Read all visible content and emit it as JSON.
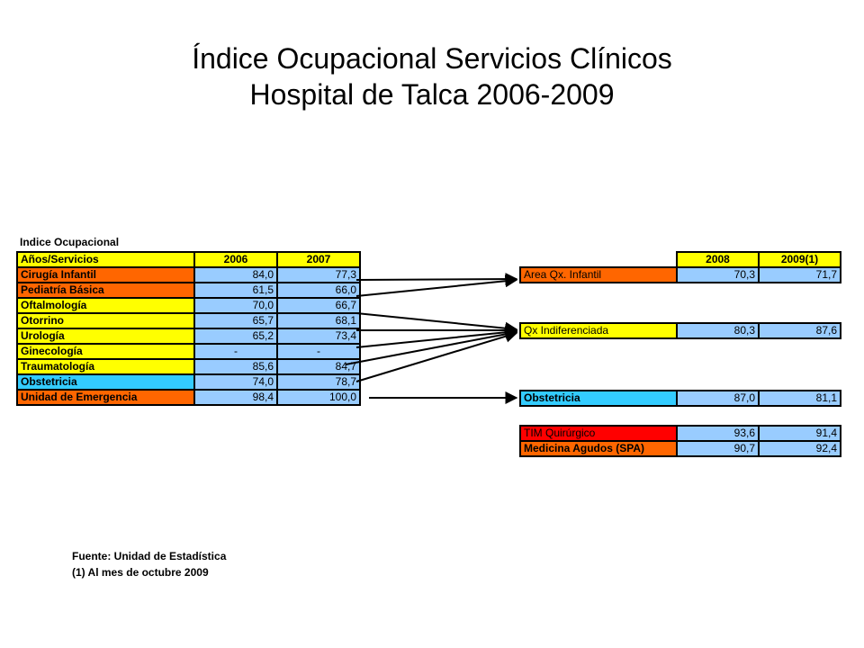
{
  "title_line1": "Índice Ocupacional Servicios Clínicos",
  "title_line2": "Hospital de Talca  2006-2009",
  "left_table": {
    "caption": "Indice Ocupacional",
    "header": [
      "Años/Servicios",
      "2006",
      "2007"
    ],
    "rows": [
      {
        "service": "Cirugía Infantil",
        "y2006": "84,0",
        "y2007": "77,3",
        "color": "#ff6600"
      },
      {
        "service": "Pediatría Básica",
        "y2006": "61,5",
        "y2007": "66,0",
        "color": "#ff6600"
      },
      {
        "service": "Oftalmología",
        "y2006": "70,0",
        "y2007": "66,7",
        "color": "#ffff00"
      },
      {
        "service": "Otorrino",
        "y2006": "65,7",
        "y2007": "68,1",
        "color": "#ffff00"
      },
      {
        "service": "Urología",
        "y2006": "65,2",
        "y2007": "73,4",
        "color": "#ffff00"
      },
      {
        "service": "Ginecología",
        "y2006": "-",
        "y2007": "-",
        "color": "#ffff00"
      },
      {
        "service": "Traumatología",
        "y2006": "85,6",
        "y2007": "84,7",
        "color": "#ffff00"
      },
      {
        "service": "Obstetricia",
        "y2006": "74,0",
        "y2007": "78,7",
        "color": "#33ccff"
      },
      {
        "service": "Unidad de Emergencia",
        "y2006": "98,4",
        "y2007": "100,0",
        "color": "#ff6600"
      }
    ]
  },
  "right_table": {
    "header": [
      "2008",
      "2009(1)"
    ],
    "area_qx": {
      "service": "Area Qx. Infantil",
      "y2008": "70,3",
      "y2009": "71,7",
      "color": "#ff6600"
    },
    "qx_indif": {
      "service": "Qx Indiferenciada",
      "y2008": "80,3",
      "y2009": "87,6",
      "color": "#ffff00"
    },
    "obstetricia": {
      "service": "Obstetricia",
      "y2008": "87,0",
      "y2009": "81,1",
      "color": "#33ccff"
    },
    "tim": {
      "service": "TIM Quirúrgico",
      "y2008": "93,6",
      "y2009": "91,4",
      "color": "#ff0000"
    },
    "medicina": {
      "service": "Medicina Agudos (SPA)",
      "y2008": "90,7",
      "y2009": "92,4",
      "color": "#ff6600"
    }
  },
  "footer": {
    "source": "Fuente: Unidad de Estadística",
    "note": "(1)  Al mes de octubre 2009"
  }
}
